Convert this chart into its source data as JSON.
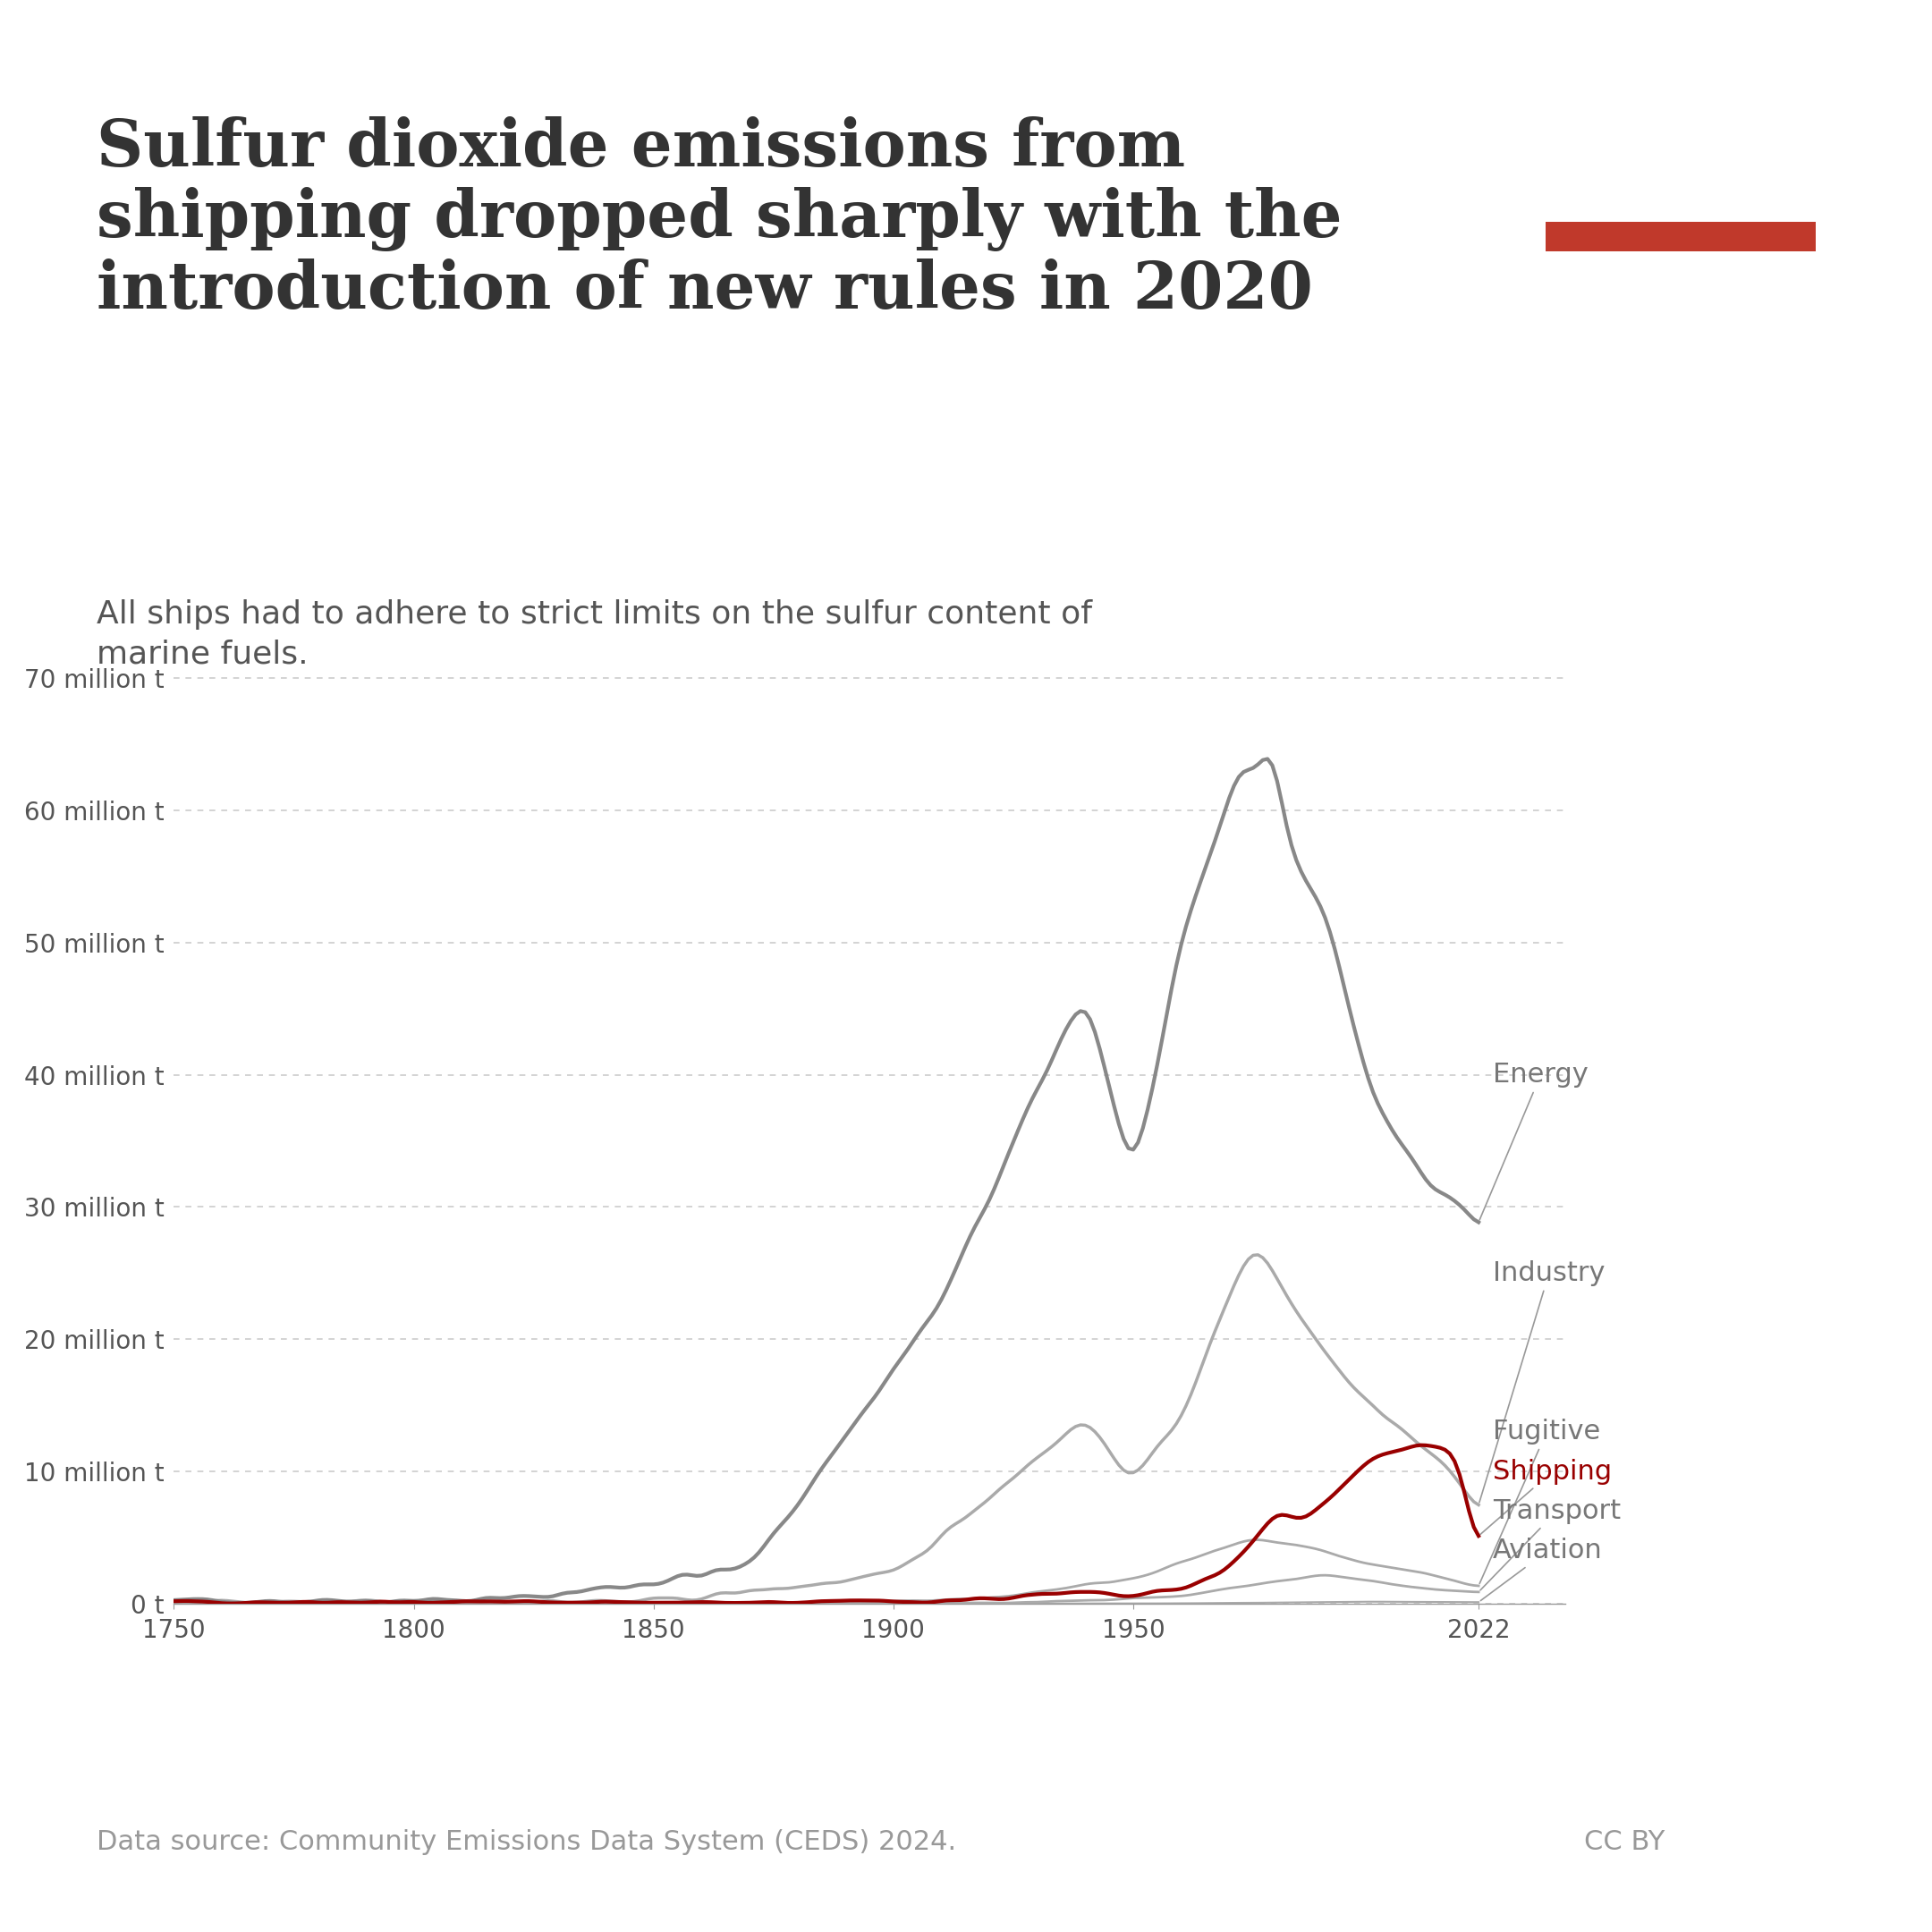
{
  "title": "Sulfur dioxide emissions from\nshipping dropped sharply with the\nintroduction of new rules in 2020",
  "subtitle": "All ships had to adhere to strict limits on the sulfur content of\nmarine fuels.",
  "datasource": "Data source: Community Emissions Data System (CEDS) 2024.",
  "cc_by": "CC BY",
  "ylabel_ticks": [
    "0 t",
    "10 million t",
    "20 million t",
    "30 million t",
    "40 million t",
    "50 million t",
    "60 million t",
    "70 million t"
  ],
  "ytick_values": [
    0,
    10,
    20,
    30,
    40,
    50,
    60,
    70
  ],
  "xtick_values": [
    1750,
    1800,
    1850,
    1900,
    1950,
    2022
  ],
  "xlim": [
    1750,
    2040
  ],
  "ylim": [
    0,
    76
  ],
  "title_color": "#333333",
  "subtitle_color": "#555555",
  "energy_color": "#888888",
  "industry_color": "#aaaaaa",
  "fugitive_color": "#aaaaaa",
  "shipping_color": "#990000",
  "transport_color": "#aaaaaa",
  "aviation_color": "#aaaaaa",
  "background_color": "#ffffff",
  "grid_color": "#cccccc",
  "owid_box_color": "#1a3a5c",
  "owid_bar_color": "#c0392b"
}
